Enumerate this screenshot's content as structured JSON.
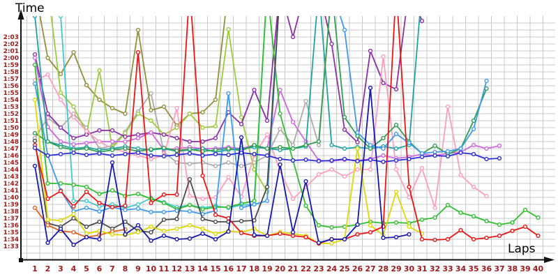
{
  "chart_data": {
    "type": "line",
    "title": "",
    "xlabel": "Laps",
    "ylabel": "Time",
    "grid": true,
    "legend": "none",
    "x_axis": {
      "label": "Laps",
      "ticks": [
        1,
        2,
        3,
        4,
        5,
        6,
        7,
        8,
        9,
        10,
        11,
        12,
        13,
        14,
        15,
        16,
        17,
        18,
        19,
        20,
        21,
        22,
        23,
        24,
        25,
        26,
        27,
        28,
        29,
        30,
        31,
        32,
        33,
        34,
        35,
        36,
        37,
        38,
        39,
        40
      ]
    },
    "y_axis": {
      "label": "Time",
      "min_seconds": 93,
      "max_seconds": 123,
      "tick_labels": [
        "1:33",
        "1:34",
        "1:35",
        "1:36",
        "1:37",
        "1:38",
        "1:39",
        "1:40",
        "1:41",
        "1:42",
        "1:43",
        "1:44",
        "1:45",
        "1:46",
        "1:47",
        "1:48",
        "1:49",
        "1:50",
        "1:51",
        "1:52",
        "1:53",
        "1:54",
        "1:55",
        "1:56",
        "1:57",
        "1:58",
        "1:59",
        "2:00",
        "2:01",
        "2:02",
        "2:03"
      ]
    },
    "note_units": "series values are lap times in seconds (93 = 1:33); values above 123 run off the top of the plot; null = no lap",
    "series": [
      {
        "name": "gray",
        "color": "#ABABAB",
        "values": [
          108.5,
          111.4,
          110,
          112,
          110,
          107,
          107.4,
          109.4,
          112.3,
          114.9,
          106.5,
          105,
          104.8,
          105,
          104.5,
          105,
          104.5,
          105,
          106,
          109.8,
          107.5,
          113.8,
          107.5,
          130,
          null,
          null,
          null,
          null,
          null,
          null,
          null,
          null,
          null,
          null,
          null,
          null,
          null,
          null,
          null,
          null
        ]
      },
      {
        "name": "olive",
        "color": "#8F8F3C",
        "values": [
          130,
          120,
          117.7,
          120.8,
          116.1,
          114,
          112.8,
          112,
          124,
          112.5,
          113,
          110.3,
          112,
          112.2,
          114,
          130,
          null,
          null,
          null,
          null,
          null,
          null,
          null,
          null,
          null,
          null,
          null,
          null,
          null,
          null,
          null,
          null,
          null,
          null,
          null,
          null,
          null,
          null,
          null,
          null
        ]
      },
      {
        "name": "yellow-green",
        "color": "#9CCB3A",
        "values": [
          130,
          130,
          115,
          113,
          109.2,
          118.2,
          107.1,
          109.2,
          112,
          111,
          109,
          110,
          112,
          110,
          110.2,
          124.1,
          111.5,
          104,
          100.8,
          130,
          null,
          null,
          null,
          null,
          null,
          null,
          null,
          null,
          null,
          null,
          null,
          null,
          null,
          null,
          null,
          null,
          null,
          null,
          null,
          null
        ]
      },
      {
        "name": "purple",
        "color": "#8B2FA8",
        "values": [
          120.5,
          112,
          110,
          108.5,
          109,
          109.6,
          109.6,
          108.7,
          109,
          109.3,
          109,
          108.5,
          108,
          108,
          108.5,
          112.2,
          110.5,
          115.4,
          111,
          130,
          123,
          130,
          130,
          122,
          109.7,
          107.9,
          121,
          116.4,
          115.5,
          130,
          125.3,
          null,
          null,
          null,
          null,
          null,
          null,
          null,
          null,
          null
        ]
      },
      {
        "name": "magenta",
        "color": "#CF66DF",
        "values": [
          120,
          110.1,
          108,
          107.6,
          107.8,
          108,
          108,
          108,
          108.5,
          109.3,
          106.8,
          107,
          107.2,
          107,
          107,
          107.2,
          107,
          107.5,
          107,
          115.4,
          110.8,
          108,
          105.3,
          105.2,
          105.4,
          105.3,
          105.5,
          106,
          105.6,
          105.8,
          106.2,
          106,
          106.3,
          106.5,
          107.5,
          107,
          107.4,
          null,
          null,
          null
        ]
      },
      {
        "name": "pink",
        "color": "#FF9DBE",
        "values": [
          116.8,
          117.6,
          114,
          111.5,
          109.5,
          108,
          107,
          106.5,
          106,
          105.5,
          106,
          112.8,
          100.2,
          99.8,
          100,
          102.9,
          100.1,
          106,
          109,
          103.8,
          99.8,
          101.5,
          103.3,
          104,
          103,
          104,
          104,
          120.2,
          104,
          100,
          104.2,
          98.5,
          113,
          103.2,
          101.5,
          100.2,
          null,
          null,
          null,
          null
        ]
      },
      {
        "name": "teal",
        "color": "#1FA3A3",
        "values": [
          126,
          108,
          107.5,
          107,
          107.2,
          106.8,
          107,
          107.3,
          107,
          106.8,
          107,
          106.6,
          106.8,
          107,
          106.5,
          106.8,
          107,
          107.2,
          107,
          106.8,
          107,
          107.3,
          130,
          107.5,
          107,
          107.2,
          107,
          107.3,
          107,
          107.5,
          130,
          null,
          null,
          null,
          null,
          null,
          null,
          null,
          null,
          null
        ]
      },
      {
        "name": "cyan",
        "color": "#40C9C9",
        "values": [
          130,
          130,
          126,
          99.5,
          99.5,
          98.7,
          99,
          98.5,
          99,
          99.9,
          99.3,
          98.6,
          98.9,
          98.5,
          98.8,
          98.5,
          98.9,
          99,
          130,
          null,
          null,
          null,
          null,
          null,
          null,
          null,
          null,
          null,
          null,
          null,
          null,
          null,
          null,
          null,
          null,
          null,
          null,
          null,
          null,
          null
        ]
      },
      {
        "name": "sea-green",
        "color": "#2FA050",
        "values": [
          109.2,
          108,
          107.2,
          106.8,
          107,
          106.5,
          106.8,
          107,
          106.6,
          106.9,
          107.1,
          106.7,
          106.9,
          106.6,
          106.8,
          107,
          106.7,
          107.5,
          107,
          107.2,
          107,
          107.5,
          108,
          130,
          111.5,
          108.8,
          107,
          108.5,
          110.4,
          108,
          106.3,
          107.4,
          106.2,
          107,
          111,
          115.6,
          null,
          null,
          null,
          null
        ]
      },
      {
        "name": "green",
        "color": "#2FBE2F",
        "values": [
          119,
          102,
          102,
          101.8,
          101.5,
          100.5,
          101,
          100.2,
          100.5,
          99.8,
          99.2,
          98.3,
          98.9,
          98.3,
          98.6,
          98.6,
          99.1,
          99.5,
          130,
          112,
          105.3,
          98.8,
          96,
          95.7,
          95.8,
          96.1,
          96.5,
          96.3,
          96.4,
          96.3,
          96.8,
          97.1,
          98.9,
          97.8,
          97.3,
          96.6,
          96.1,
          96.4,
          98.2,
          97.1
        ]
      },
      {
        "name": "dodger-blue",
        "color": "#3E9AEC",
        "values": [
          116.3,
          106,
          101,
          98,
          98.5,
          98,
          98.6,
          98.2,
          98.4,
          97.9,
          97.9,
          98.1,
          98,
          97.6,
          98.1,
          114.9,
          98.5,
          99,
          99.5,
          130,
          130,
          130,
          130,
          130,
          124,
          109.3,
          107.5,
          107,
          109.1,
          107.8,
          106.3,
          106.5,
          106.6,
          107,
          109.8,
          116.7,
          null,
          null,
          null,
          null
        ]
      },
      {
        "name": "black",
        "color": "#4A4A4A",
        "values": [
          108.1,
          96.3,
          95.8,
          97,
          95.8,
          96.5,
          95.5,
          96.5,
          95.2,
          95,
          96.8,
          96.9,
          102.6,
          96.9,
          96.5,
          96.5,
          96.6,
          96.7,
          101.5,
          130,
          null,
          null,
          null,
          null,
          null,
          null,
          null,
          null,
          null,
          null,
          null,
          null,
          null,
          null,
          null,
          null,
          null,
          null,
          null,
          null
        ]
      },
      {
        "name": "orange",
        "color": "#E4611C",
        "values": [
          98.5,
          96,
          95.2,
          95,
          94.3,
          94.6,
          95.1,
          95.4,
          null,
          null,
          null,
          null,
          null,
          null,
          null,
          null,
          null,
          null,
          null,
          null,
          null,
          null,
          null,
          null,
          null,
          null,
          null,
          null,
          null,
          null,
          null,
          null,
          null,
          null,
          null,
          null,
          null,
          null,
          null,
          null
        ]
      },
      {
        "name": "yellow",
        "color": "#DED800",
        "values": [
          114,
          96.8,
          96.7,
          97.6,
          94.8,
          95.2,
          94.7,
          94.6,
          95,
          95.8,
          95.2,
          95.5,
          96,
          95.5,
          94.8,
          95.2,
          95,
          95.5,
          94.5,
          95,
          94.8,
          94.5,
          93.4,
          93.4,
          94,
          107,
          96,
          94.6,
          100.8,
          95.8,
          94.8,
          null,
          null,
          null,
          null,
          null,
          null,
          null,
          null,
          null
        ]
      },
      {
        "name": "red",
        "color": "#EC1515",
        "values": [
          107.5,
          99.8,
          100.9,
          98.7,
          100.8,
          99.2,
          98.6,
          98.8,
          120.8,
          99.2,
          100.4,
          100.4,
          130,
          103.1,
          97.5,
          97,
          94.9,
          94.5,
          94.5,
          94.8,
          94.5,
          94.3,
          93.4,
          94,
          94,
          94.7,
          95,
          95.8,
          130,
          101.5,
          94,
          93.9,
          94,
          95.3,
          94,
          94.2,
          94.5,
          95.2,
          95.8,
          94.5
        ]
      },
      {
        "name": "blue",
        "color": "#2B2BD9",
        "values": [
          107.1,
          106,
          106.2,
          106.4,
          106.1,
          106.3,
          106,
          106.2,
          106.4,
          106,
          105.9,
          106.1,
          106.3,
          106,
          106.2,
          106.1,
          106.4,
          106.2,
          106,
          105.5,
          105.3,
          105.4,
          105.2,
          105.3,
          105.5,
          105.2,
          105.4,
          105.1,
          105.3,
          105.5,
          105.8,
          106,
          105.9,
          106.4,
          106.2,
          105.5,
          105.6,
          null,
          null,
          null
        ]
      },
      {
        "name": "navy",
        "color": "#1717AE",
        "values": [
          104.5,
          93.5,
          95.5,
          93.2,
          94.3,
          94,
          105,
          94.7,
          96,
          93.8,
          94.5,
          94,
          94.1,
          94.8,
          94,
          95.1,
          108.6,
          94.6,
          94.5,
          104.7,
          95,
          102.3,
          93.5,
          94,
          94,
          96.1,
          115.7,
          94.2,
          94.3,
          94.7,
          null,
          null,
          null,
          null,
          null,
          null,
          null,
          null,
          null,
          null
        ]
      }
    ]
  }
}
